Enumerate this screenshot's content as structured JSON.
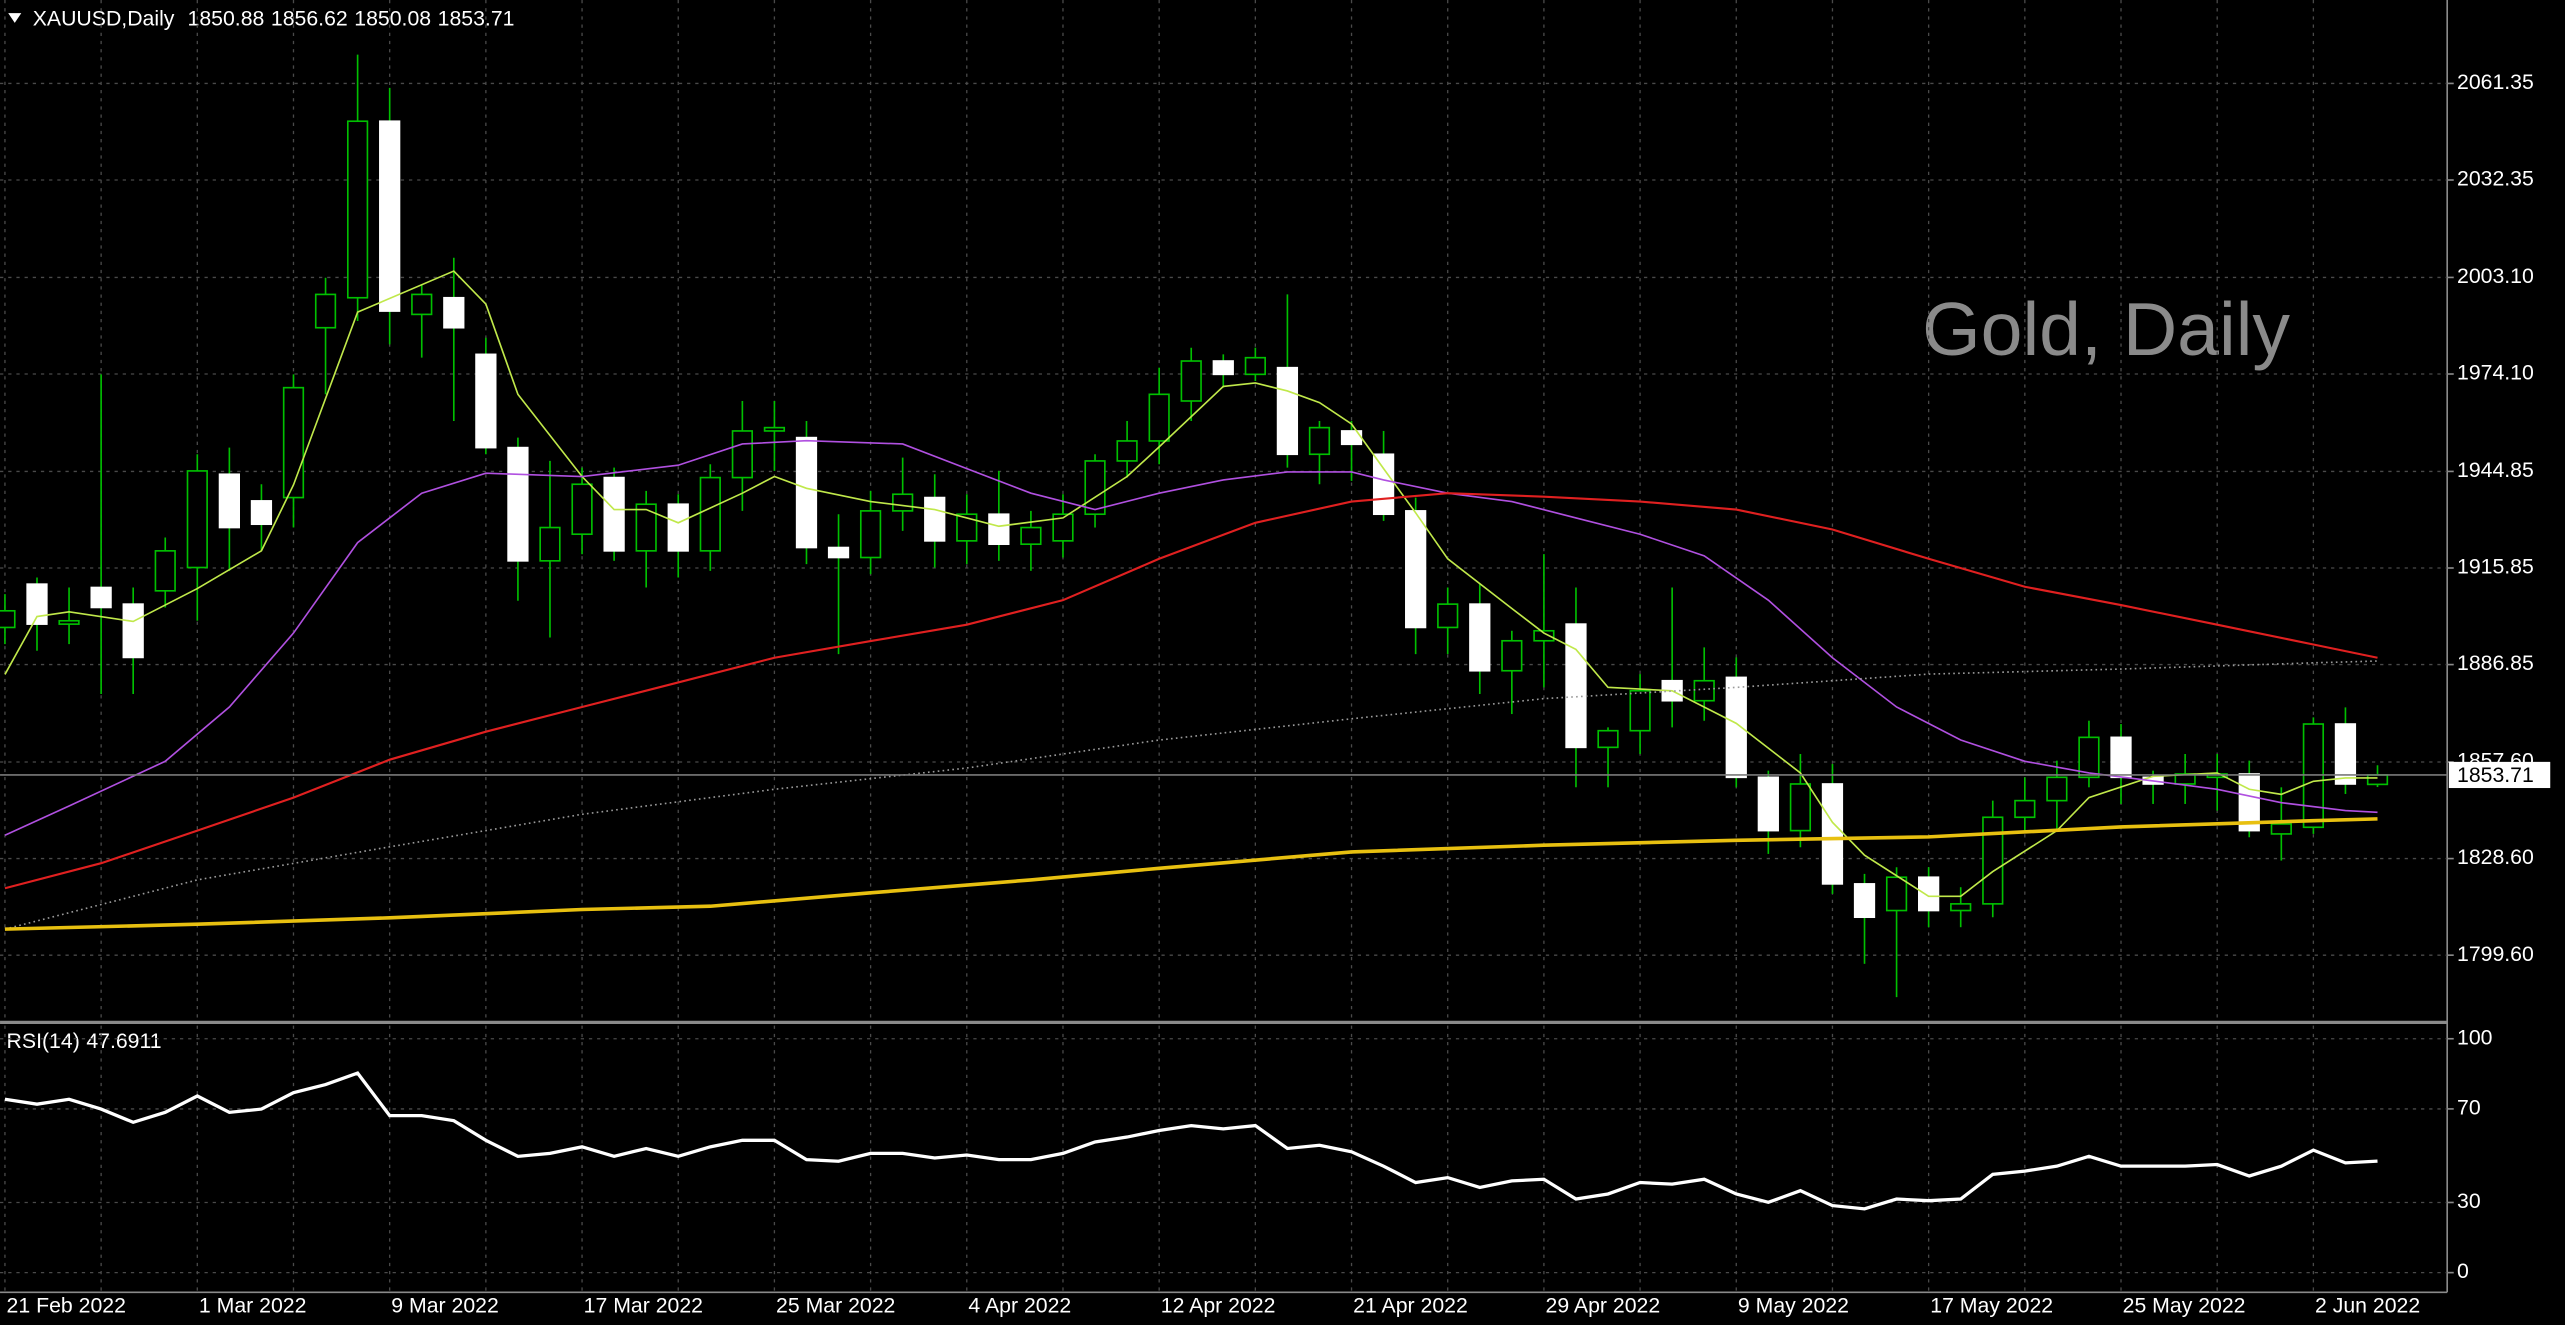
{
  "chart_data": [
    {
      "type": "candlestick",
      "title": "XAUUSD,Daily",
      "watermark": "Gold, Daily",
      "categories": [
        "21 Feb 2022",
        null,
        null,
        null,
        null,
        null,
        "1 Mar 2022",
        null,
        null,
        null,
        null,
        null,
        "9 Mar 2022",
        null,
        null,
        null,
        null,
        null,
        "17 Mar 2022",
        null,
        null,
        null,
        null,
        null,
        "25 Mar 2022",
        null,
        null,
        null,
        null,
        null,
        "4 Apr 2022",
        null,
        null,
        null,
        null,
        null,
        "12 Apr 2022",
        null,
        null,
        null,
        null,
        null,
        "21 Apr 2022",
        null,
        null,
        null,
        null,
        null,
        "29 Apr 2022",
        null,
        null,
        null,
        null,
        null,
        "9 May 2022",
        null,
        null,
        null,
        null,
        null,
        "17 May 2022",
        null,
        null,
        null,
        null,
        null,
        "25 May 2022",
        null,
        null,
        null,
        null,
        null,
        "2 Jun 2022",
        null,
        null
      ],
      "open": [
        1898,
        1911,
        1899,
        1910,
        1905,
        1909,
        1916,
        1944,
        1936,
        1937,
        1988,
        1997,
        2050,
        1992,
        1997,
        1980,
        1952,
        1918,
        1926,
        1943,
        1921,
        1935,
        1921,
        1943,
        1957,
        1955,
        1922,
        1919,
        1933,
        1937,
        1924,
        1932,
        1923,
        1924,
        1932,
        1948,
        1954,
        1966,
        1978,
        1974,
        1976,
        1950,
        1957,
        1950,
        1933,
        1898,
        1905,
        1885,
        1894,
        1899,
        1862,
        1867,
        1882,
        1876,
        1883,
        1853,
        1837,
        1851,
        1821,
        1813,
        1823,
        1813,
        1815,
        1841,
        1846,
        1853,
        1865,
        1853,
        1851,
        1853,
        1854,
        1836,
        1838,
        1869,
        1850.88
      ],
      "high": [
        1908,
        1913,
        1910,
        1974,
        1910,
        1925,
        1950,
        1952,
        1941,
        1974,
        2003,
        2070,
        2060,
        2001,
        2009,
        1985,
        1955,
        1948,
        1946,
        1946,
        1939,
        1938,
        1947,
        1966,
        1966,
        1960,
        1932,
        1939,
        1949,
        1944,
        1938,
        1945,
        1933,
        1938,
        1950,
        1960,
        1976,
        1982,
        1980,
        1982,
        1998,
        1960,
        1960,
        1957,
        1937,
        1910,
        1911,
        1897,
        1920,
        1910,
        1868,
        1884,
        1910,
        1892,
        1889,
        1855,
        1860,
        1857,
        1824,
        1826,
        1826,
        1820,
        1846,
        1853,
        1858,
        1870,
        1869,
        1855,
        1860,
        1860,
        1858,
        1850,
        1871,
        1874,
        1856.62
      ],
      "low": [
        1893,
        1891,
        1893,
        1878,
        1878,
        1904,
        1900,
        1915,
        1921,
        1928,
        1968,
        1990,
        1983,
        1979,
        1960,
        1950,
        1906,
        1895,
        1920,
        1918,
        1910,
        1913,
        1915,
        1933,
        1945,
        1917,
        1890,
        1914,
        1927,
        1916,
        1917,
        1918,
        1915,
        1919,
        1928,
        1943,
        1947,
        1960,
        1970,
        1972,
        1946,
        1941,
        1942,
        1930,
        1890,
        1890,
        1878,
        1872,
        1880,
        1850,
        1850,
        1860,
        1868,
        1870,
        1850,
        1830,
        1832,
        1818,
        1797,
        1787,
        1808,
        1808,
        1811,
        1837,
        1837,
        1850,
        1845,
        1845,
        1845,
        1843,
        1835,
        1828,
        1836,
        1848,
        1850.08
      ],
      "close": [
        1903,
        1899,
        1900,
        1904,
        1889,
        1921,
        1945,
        1928,
        1929,
        1970,
        1998,
        2050,
        1993,
        1998,
        1988,
        1952,
        1918,
        1928,
        1941,
        1921,
        1935,
        1921,
        1943,
        1957,
        1958,
        1922,
        1919,
        1933,
        1938,
        1924,
        1932,
        1923,
        1928,
        1932,
        1948,
        1954,
        1968,
        1978,
        1974,
        1979,
        1950,
        1958,
        1953,
        1932,
        1898,
        1905,
        1885,
        1894,
        1897,
        1862,
        1867,
        1879,
        1876,
        1882,
        1853,
        1837,
        1851,
        1821,
        1811,
        1823,
        1813,
        1815,
        1841,
        1846,
        1853,
        1865,
        1853,
        1851,
        1854,
        1854,
        1837,
        1839,
        1869,
        1851,
        1853.71
      ],
      "bull_color": "#000000",
      "bear_color": "#ffffff",
      "wick_color": "#00c000",
      "bull_outline": "#00c000",
      "lines": [
        {
          "color": "#c0e84a",
          "width": 1,
          "style": "solid",
          "x": [
            0,
            1,
            2,
            4,
            6,
            8,
            9,
            11,
            14,
            15,
            16,
            18,
            19,
            20,
            21,
            23,
            24,
            25,
            27,
            29,
            31,
            33,
            35,
            36,
            38,
            39,
            40,
            41,
            42,
            43,
            44,
            45,
            47,
            48,
            49,
            50,
            52,
            54,
            56,
            57,
            58,
            60,
            61,
            62,
            64,
            65,
            67,
            69,
            70,
            71,
            72,
            73,
            74
          ],
          "values": [
            1883.9,
            1901.3,
            1902.7,
            1899.8,
            1909.7,
            1921.0,
            1940.8,
            1992.7,
            2005.0,
            1995.1,
            1968.0,
            1943.3,
            1933.4,
            1933.4,
            1929.4,
            1938.3,
            1943.3,
            1939.8,
            1935.8,
            1933.4,
            1928.4,
            1930.9,
            1943.3,
            1952.2,
            1970.4,
            1971.4,
            1969.0,
            1965.5,
            1959.1,
            1945.7,
            1932.4,
            1918.6,
            1903.7,
            1896.3,
            1891.4,
            1880.0,
            1879.0,
            1869.2,
            1854.3,
            1839.5,
            1829.6,
            1817.3,
            1817.3,
            1824.7,
            1837.0,
            1846.9,
            1853.3,
            1854.3,
            1849.4,
            1847.9,
            1851.8,
            1852.8,
            1852.8
          ]
        },
        {
          "color": "#b050e0",
          "width": 1,
          "style": "solid",
          "x": [
            0,
            2,
            5,
            7,
            9,
            11,
            13,
            15,
            18,
            21,
            23,
            25,
            28,
            30,
            32,
            34,
            36,
            38,
            40,
            42,
            43,
            45,
            47,
            49,
            51,
            53,
            55,
            57,
            59,
            61,
            63,
            65,
            67,
            69,
            71,
            73,
            74
          ],
          "values": [
            1835.6,
            1844.4,
            1857.8,
            1874.1,
            1896.3,
            1923.5,
            1938.3,
            1944.3,
            1943.3,
            1946.7,
            1953.1,
            1954.1,
            1953.1,
            1945.7,
            1938.3,
            1933.4,
            1938.3,
            1942.3,
            1944.7,
            1944.7,
            1942.3,
            1938.3,
            1935.8,
            1930.9,
            1926.0,
            1919.5,
            1906.2,
            1888.9,
            1874.1,
            1864.2,
            1857.8,
            1854.3,
            1851.9,
            1849.4,
            1845.4,
            1843.0,
            1842.5
          ]
        },
        {
          "color": "#e02020",
          "width": 1.3,
          "style": "solid",
          "x": [
            0,
            3,
            6,
            9,
            12,
            15,
            18,
            21,
            24,
            27,
            30,
            33,
            36,
            39,
            42,
            45,
            48,
            51,
            54,
            57,
            60,
            63,
            66,
            69,
            72,
            74
          ],
          "values": [
            1819.7,
            1827.2,
            1837.0,
            1846.9,
            1858.3,
            1866.7,
            1874.1,
            1881.5,
            1888.9,
            1893.9,
            1898.8,
            1906.2,
            1918.6,
            1929.4,
            1935.8,
            1938.3,
            1937.3,
            1935.8,
            1933.4,
            1927.4,
            1918.6,
            1910.2,
            1904.7,
            1898.8,
            1892.9,
            1888.9
          ]
        },
        {
          "color": "#9a9a9a",
          "width": 1,
          "style": "dotted",
          "x": [
            0,
            6,
            12,
            18,
            24,
            30,
            36,
            42,
            48,
            54,
            60,
            66,
            72,
            74
          ],
          "values": [
            1807.4,
            1822.2,
            1832.1,
            1841.9,
            1849.4,
            1855.8,
            1864.2,
            1870.6,
            1876.6,
            1880.0,
            1884.0,
            1885.5,
            1887.4,
            1887.9
          ]
        },
        {
          "color": "#e8c010",
          "width": 2.2,
          "style": "solid",
          "x": [
            0,
            6,
            12,
            18,
            22,
            27,
            32,
            36,
            42,
            48,
            54,
            60,
            66,
            72,
            74
          ],
          "values": [
            1807.4,
            1808.9,
            1810.8,
            1813.3,
            1814.3,
            1818.3,
            1822.2,
            1825.7,
            1830.6,
            1832.6,
            1834.1,
            1835.1,
            1838.1,
            1840.0,
            1840.5
          ]
        }
      ],
      "ylim": [
        1780.4,
        2086.4
      ],
      "yticks": [
        {
          "value": 1799.6,
          "label": "1799.60"
        },
        {
          "value": 1828.6,
          "label": "1828.60"
        },
        {
          "value": 1857.6,
          "label": "1857.60"
        },
        1886.85,
        1915.85,
        1944.85,
        {
          "value": 1974.1,
          "label": "1974.10"
        },
        {
          "value": 2003.1,
          "label": "2003.10"
        },
        2032.35,
        2061.35
      ],
      "grid": true
    },
    {
      "type": "line",
      "title": "RSI(14)",
      "color": "#ffffff",
      "values": [
        74.1,
        72.0,
        74.1,
        69.9,
        64.3,
        68.5,
        75.5,
        68.5,
        69.9,
        76.9,
        80.4,
        85.3,
        67.1,
        67.1,
        65.0,
        56.6,
        49.7,
        51.0,
        53.8,
        49.7,
        53.1,
        49.7,
        53.8,
        56.6,
        56.6,
        48.3,
        47.6,
        51.0,
        51.0,
        49.0,
        50.3,
        48.3,
        48.3,
        51.0,
        55.9,
        58.0,
        60.8,
        62.9,
        61.5,
        62.9,
        53.1,
        54.5,
        51.7,
        45.5,
        38.5,
        40.6,
        36.4,
        39.2,
        39.9,
        31.5,
        33.6,
        38.5,
        37.8,
        39.9,
        33.6,
        30.1,
        35.0,
        28.7,
        27.3,
        31.5,
        30.8,
        31.5,
        42.0,
        43.4,
        45.5,
        49.7,
        45.5,
        45.5,
        45.5,
        46.2,
        41.3,
        45.5,
        52.4,
        46.9,
        47.6911
      ],
      "ylim": [
        -8.4,
        105.6
      ],
      "yticks": [
        100,
        70,
        30,
        0
      ],
      "grid": true
    }
  ]
}
